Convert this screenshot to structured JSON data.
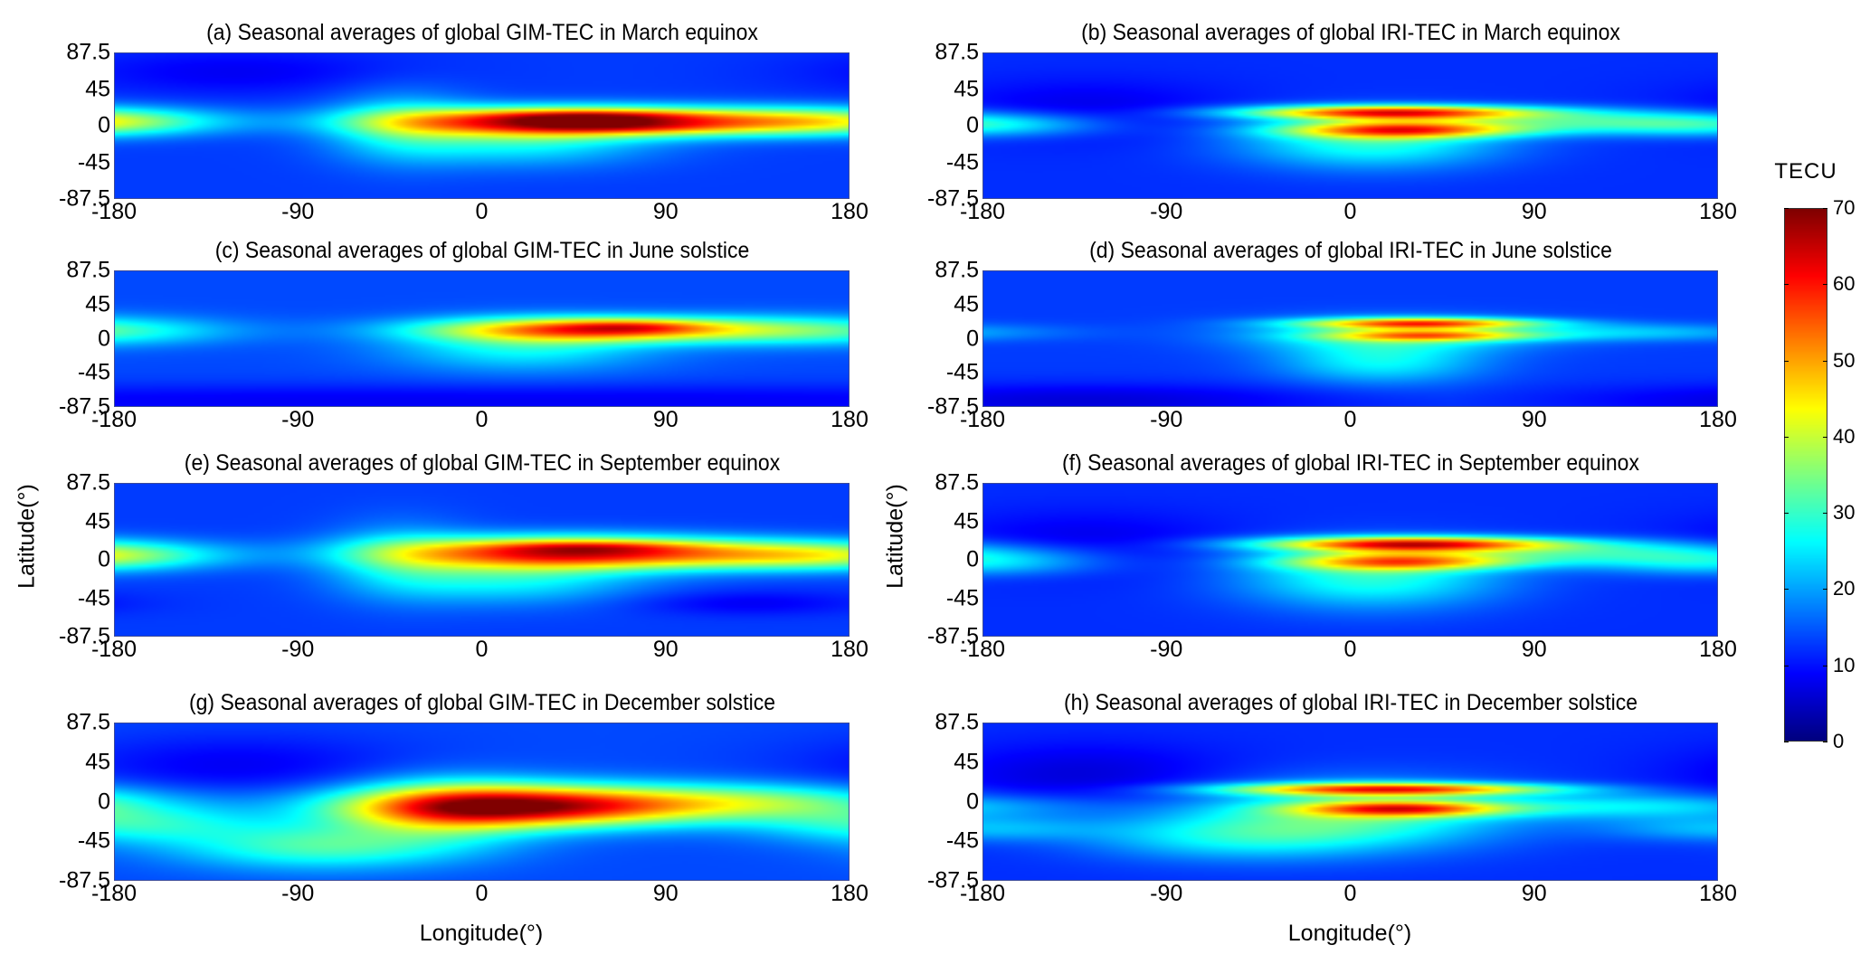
{
  "figure": {
    "colorbar": {
      "label": "TECU",
      "ticks": [
        "0",
        "10",
        "20",
        "30",
        "40",
        "50",
        "60",
        "70"
      ],
      "range": [
        0,
        70
      ],
      "colormap": "jet"
    },
    "xlabel": "Longitude(°)",
    "ylabel": "Latitude(°)"
  },
  "chart_data": [
    {
      "id": "a",
      "type": "heatmap",
      "title": "(a) Seasonal averages of global GIM-TEC in March equinox",
      "xlim": [
        -180,
        180
      ],
      "ylim": [
        -87.5,
        87.5
      ],
      "xticks": [
        "-180",
        "-90",
        "0",
        "90",
        "180"
      ],
      "yticks": [
        "87.5",
        "45",
        "0",
        "-45",
        "-87.5"
      ],
      "zlim": [
        0,
        70
      ],
      "units": "TECU",
      "background": 12,
      "features": [
        {
          "lon": 40,
          "lat": 5,
          "tec": 52,
          "lon_width": 60,
          "lat_width": 12
        },
        {
          "lon": 55,
          "lat": 12,
          "tec": 12,
          "lon_width": 35,
          "lat_width": 5
        },
        {
          "lon": 70,
          "lat": -2,
          "tec": 8,
          "lon_width": 35,
          "lat_width": 5
        },
        {
          "lon": 20,
          "lat": -20,
          "tec": 14,
          "lon_width": 45,
          "lat_width": 20
        },
        {
          "lon": 140,
          "lat": 5,
          "tec": 20,
          "lon_width": 50,
          "lat_width": 12
        },
        {
          "lon": -180,
          "lat": 5,
          "tec": 14,
          "lon_width": 40,
          "lat_width": 12
        },
        {
          "lon": -40,
          "lat": 0,
          "tec": 12,
          "lon_width": 25,
          "lat_width": 30
        },
        {
          "lon": -120,
          "lat": 65,
          "tec": -5,
          "lon_width": 60,
          "lat_width": 20
        }
      ]
    },
    {
      "id": "b",
      "type": "heatmap",
      "title": "(b) Seasonal averages of global IRI-TEC in March equinox",
      "xlim": [
        -180,
        180
      ],
      "ylim": [
        -87.5,
        87.5
      ],
      "xticks": [
        "-180",
        "-90",
        "0",
        "90",
        "180"
      ],
      "yticks": [
        "87.5",
        "45",
        "0",
        "-45",
        "-87.5"
      ],
      "zlim": [
        0,
        70
      ],
      "units": "TECU",
      "background": 11,
      "features": [
        {
          "lon": 20,
          "lat": 16,
          "tec": 48,
          "lon_width": 50,
          "lat_width": 6
        },
        {
          "lon": 25,
          "lat": -5,
          "tec": 38,
          "lon_width": 40,
          "lat_width": 7
        },
        {
          "lon": 10,
          "lat": -20,
          "tec": 18,
          "lon_width": 45,
          "lat_width": 22
        },
        {
          "lon": 120,
          "lat": 5,
          "tec": 16,
          "lon_width": 60,
          "lat_width": 10
        },
        {
          "lon": -180,
          "lat": 0,
          "tec": 12,
          "lon_width": 40,
          "lat_width": 10
        },
        {
          "lon": -130,
          "lat": 20,
          "tec": -5,
          "lon_width": 50,
          "lat_width": 25
        }
      ]
    },
    {
      "id": "c",
      "type": "heatmap",
      "title": "(c) Seasonal averages of global GIM-TEC in June solstice",
      "xlim": [
        -180,
        180
      ],
      "ylim": [
        -87.5,
        87.5
      ],
      "xticks": [
        "-180",
        "-90",
        "0",
        "90",
        "180"
      ],
      "yticks": [
        "87.5",
        "45",
        "0",
        "-45",
        "-87.5"
      ],
      "zlim": [
        0,
        70
      ],
      "units": "TECU",
      "background": 13,
      "features": [
        {
          "lon": 55,
          "lat": 12,
          "tec": 40,
          "lon_width": 55,
          "lat_width": 11
        },
        {
          "lon": 75,
          "lat": 16,
          "tec": 10,
          "lon_width": 25,
          "lat_width": 6
        },
        {
          "lon": 20,
          "lat": -10,
          "tec": 14,
          "lon_width": 45,
          "lat_width": 22
        },
        {
          "lon": 150,
          "lat": 10,
          "tec": 10,
          "lon_width": 50,
          "lat_width": 15
        },
        {
          "lon": -180,
          "lat": 10,
          "tec": 8,
          "lon_width": 45,
          "lat_width": 12
        },
        {
          "lon": 0,
          "lat": -80,
          "tec": -6,
          "lon_width": 400,
          "lat_width": 15
        }
      ]
    },
    {
      "id": "d",
      "type": "heatmap",
      "title": "(d) Seasonal averages of global IRI-TEC in June solstice",
      "xlim": [
        -180,
        180
      ],
      "ylim": [
        -87.5,
        87.5
      ],
      "xticks": [
        "-180",
        "-90",
        "0",
        "90",
        "180"
      ],
      "yticks": [
        "87.5",
        "45",
        "0",
        "-45",
        "-87.5"
      ],
      "zlim": [
        0,
        70
      ],
      "units": "TECU",
      "background": 12,
      "features": [
        {
          "lon": 35,
          "lat": 20,
          "tec": 40,
          "lon_width": 40,
          "lat_width": 5
        },
        {
          "lon": 40,
          "lat": 4,
          "tec": 28,
          "lon_width": 35,
          "lat_width": 5
        },
        {
          "lon": 20,
          "lat": 5,
          "tec": 16,
          "lon_width": 50,
          "lat_width": 15
        },
        {
          "lon": 15,
          "lat": -30,
          "tec": 14,
          "lon_width": 35,
          "lat_width": 20
        },
        {
          "lon": 140,
          "lat": 8,
          "tec": 10,
          "lon_width": 50,
          "lat_width": 8
        },
        {
          "lon": -130,
          "lat": -80,
          "tec": -7,
          "lon_width": 90,
          "lat_width": 15
        }
      ]
    },
    {
      "id": "e",
      "type": "heatmap",
      "title": "(e) Seasonal averages of global GIM-TEC in September equinox",
      "xlim": [
        -180,
        180
      ],
      "ylim": [
        -87.5,
        87.5
      ],
      "xticks": [
        "-180",
        "-90",
        "0",
        "90",
        "180"
      ],
      "yticks": [
        "87.5",
        "45",
        "0",
        "-45",
        "-87.5"
      ],
      "zlim": [
        0,
        70
      ],
      "units": "TECU",
      "background": 12,
      "features": [
        {
          "lon": 40,
          "lat": 8,
          "tec": 48,
          "lon_width": 60,
          "lat_width": 13
        },
        {
          "lon": 55,
          "lat": 15,
          "tec": 10,
          "lon_width": 35,
          "lat_width": 5
        },
        {
          "lon": 15,
          "lat": -22,
          "tec": 14,
          "lon_width": 45,
          "lat_width": 20
        },
        {
          "lon": 140,
          "lat": 5,
          "tec": 18,
          "lon_width": 50,
          "lat_width": 12
        },
        {
          "lon": -180,
          "lat": 5,
          "tec": 14,
          "lon_width": 40,
          "lat_width": 12
        },
        {
          "lon": -40,
          "lat": 0,
          "tec": 10,
          "lon_width": 25,
          "lat_width": 30
        },
        {
          "lon": 130,
          "lat": -50,
          "tec": -5,
          "lon_width": 40,
          "lat_width": 10
        }
      ]
    },
    {
      "id": "f",
      "type": "heatmap",
      "title": "(f) Seasonal averages of global IRI-TEC in September equinox",
      "xlim": [
        -180,
        180
      ],
      "ylim": [
        -87.5,
        87.5
      ],
      "xticks": [
        "-180",
        "-90",
        "0",
        "90",
        "180"
      ],
      "yticks": [
        "87.5",
        "45",
        "0",
        "-45",
        "-87.5"
      ],
      "zlim": [
        0,
        70
      ],
      "units": "TECU",
      "background": 11,
      "features": [
        {
          "lon": 30,
          "lat": 18,
          "tec": 50,
          "lon_width": 50,
          "lat_width": 6
        },
        {
          "lon": 25,
          "lat": -2,
          "tec": 34,
          "lon_width": 40,
          "lat_width": 7
        },
        {
          "lon": 10,
          "lat": -20,
          "tec": 18,
          "lon_width": 45,
          "lat_width": 25
        },
        {
          "lon": 130,
          "lat": 8,
          "tec": 16,
          "lon_width": 60,
          "lat_width": 10
        },
        {
          "lon": -180,
          "lat": -5,
          "tec": 12,
          "lon_width": 40,
          "lat_width": 10
        },
        {
          "lon": -130,
          "lat": 20,
          "tec": -5,
          "lon_width": 50,
          "lat_width": 25
        }
      ]
    },
    {
      "id": "g",
      "type": "heatmap",
      "title": "(g) Seasonal averages of global GIM-TEC in December solstice",
      "xlim": [
        -180,
        180
      ],
      "ylim": [
        -87.5,
        87.5
      ],
      "xticks": [
        "-180",
        "-90",
        "0",
        "90",
        "180"
      ],
      "yticks": [
        "87.5",
        "45",
        "0",
        "-45",
        "-87.5"
      ],
      "zlim": [
        0,
        70
      ],
      "units": "TECU",
      "background": 13,
      "features": [
        {
          "lon": 25,
          "lat": -5,
          "tec": 54,
          "lon_width": 60,
          "lat_width": 16
        },
        {
          "lon": -20,
          "lat": -10,
          "tec": 18,
          "lon_width": 35,
          "lat_width": 25
        },
        {
          "lon": -80,
          "lat": -50,
          "tec": 18,
          "lon_width": 50,
          "lat_width": 18
        },
        {
          "lon": -170,
          "lat": -25,
          "tec": 14,
          "lon_width": 40,
          "lat_width": 15
        },
        {
          "lon": 140,
          "lat": 0,
          "tec": 18,
          "lon_width": 50,
          "lat_width": 14
        },
        {
          "lon": -120,
          "lat": 40,
          "tec": -6,
          "lon_width": 60,
          "lat_width": 25
        }
      ]
    },
    {
      "id": "h",
      "type": "heatmap",
      "title": "(h) Seasonal averages of global IRI-TEC in December solstice",
      "xlim": [
        -180,
        180
      ],
      "ylim": [
        -87.5,
        87.5
      ],
      "xticks": [
        "-180",
        "-90",
        "0",
        "90",
        "180"
      ],
      "yticks": [
        "87.5",
        "45",
        "0",
        "-45",
        "-87.5"
      ],
      "zlim": [
        0,
        70
      ],
      "units": "TECU",
      "background": 11,
      "features": [
        {
          "lon": 20,
          "lat": 14,
          "tec": 44,
          "lon_width": 55,
          "lat_width": 5
        },
        {
          "lon": 25,
          "lat": -8,
          "tec": 36,
          "lon_width": 35,
          "lat_width": 6
        },
        {
          "lon": 0,
          "lat": -15,
          "tec": 20,
          "lon_width": 55,
          "lat_width": 25
        },
        {
          "lon": -60,
          "lat": -40,
          "tec": 12,
          "lon_width": 50,
          "lat_width": 18
        },
        {
          "lon": 140,
          "lat": -5,
          "tec": 14,
          "lon_width": 60,
          "lat_width": 10
        },
        {
          "lon": -180,
          "lat": -30,
          "tec": 10,
          "lon_width": 40,
          "lat_width": 10
        },
        {
          "lon": -130,
          "lat": 30,
          "tec": -6,
          "lon_width": 50,
          "lat_width": 25
        }
      ]
    }
  ]
}
